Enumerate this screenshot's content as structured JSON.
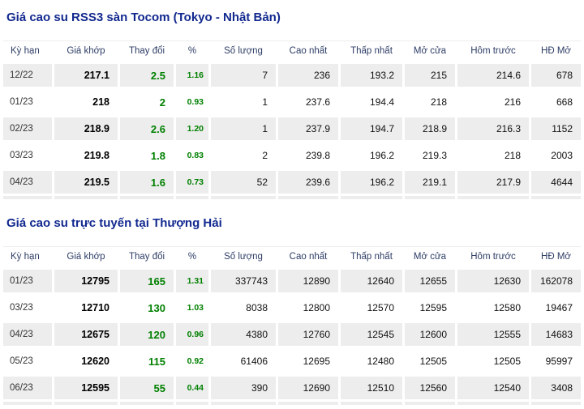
{
  "colors": {
    "title_blue": "#12298f",
    "header_text": "#2e3d66",
    "positive_green": "#008000",
    "row_grey": "#ededed",
    "page_bg": "#ffffff"
  },
  "columns": [
    {
      "key": "term",
      "label": "Kỳ hạn"
    },
    {
      "key": "last-price",
      "label": "Giá khớp"
    },
    {
      "key": "change",
      "label": "Thay đổi"
    },
    {
      "key": "change-pct",
      "label": "%"
    },
    {
      "key": "volume",
      "label": "Số lượng"
    },
    {
      "key": "high",
      "label": "Cao nhất"
    },
    {
      "key": "low",
      "label": "Thấp nhất"
    },
    {
      "key": "open",
      "label": "Mở cửa"
    },
    {
      "key": "prev-close",
      "label": "Hôm trước"
    },
    {
      "key": "open-interest",
      "label": "HĐ Mở"
    }
  ],
  "tables": [
    {
      "title": "Giá cao su RSS3 sàn Tocom (Tokyo - Nhật Bản)",
      "rows": [
        [
          "12/22",
          "217.1",
          "2.5",
          "1.16",
          "7",
          "236",
          "193.2",
          "215",
          "214.6",
          "678"
        ],
        [
          "01/23",
          "218",
          "2",
          "0.93",
          "1",
          "237.6",
          "194.4",
          "218",
          "216",
          "668"
        ],
        [
          "02/23",
          "218.9",
          "2.6",
          "1.20",
          "1",
          "237.9",
          "194.7",
          "218.9",
          "216.3",
          "1152"
        ],
        [
          "03/23",
          "219.8",
          "1.8",
          "0.83",
          "2",
          "239.8",
          "196.2",
          "219.3",
          "218",
          "2003"
        ],
        [
          "04/23",
          "219.5",
          "1.6",
          "0.73",
          "52",
          "239.6",
          "196.2",
          "219.1",
          "217.9",
          "4644"
        ]
      ]
    },
    {
      "title": "Giá cao su trực tuyến tại Thượng Hải",
      "rows": [
        [
          "01/23",
          "12795",
          "165",
          "1.31",
          "337743",
          "12890",
          "12640",
          "12655",
          "12630",
          "162078"
        ],
        [
          "03/23",
          "12710",
          "130",
          "1.03",
          "8038",
          "12800",
          "12570",
          "12595",
          "12580",
          "19467"
        ],
        [
          "04/23",
          "12675",
          "120",
          "0.96",
          "4380",
          "12760",
          "12545",
          "12600",
          "12555",
          "14683"
        ],
        [
          "05/23",
          "12620",
          "115",
          "0.92",
          "61406",
          "12695",
          "12480",
          "12505",
          "12505",
          "95997"
        ],
        [
          "06/23",
          "12595",
          "55",
          "0.44",
          "390",
          "12690",
          "12510",
          "12560",
          "12540",
          "3408"
        ]
      ]
    }
  ]
}
